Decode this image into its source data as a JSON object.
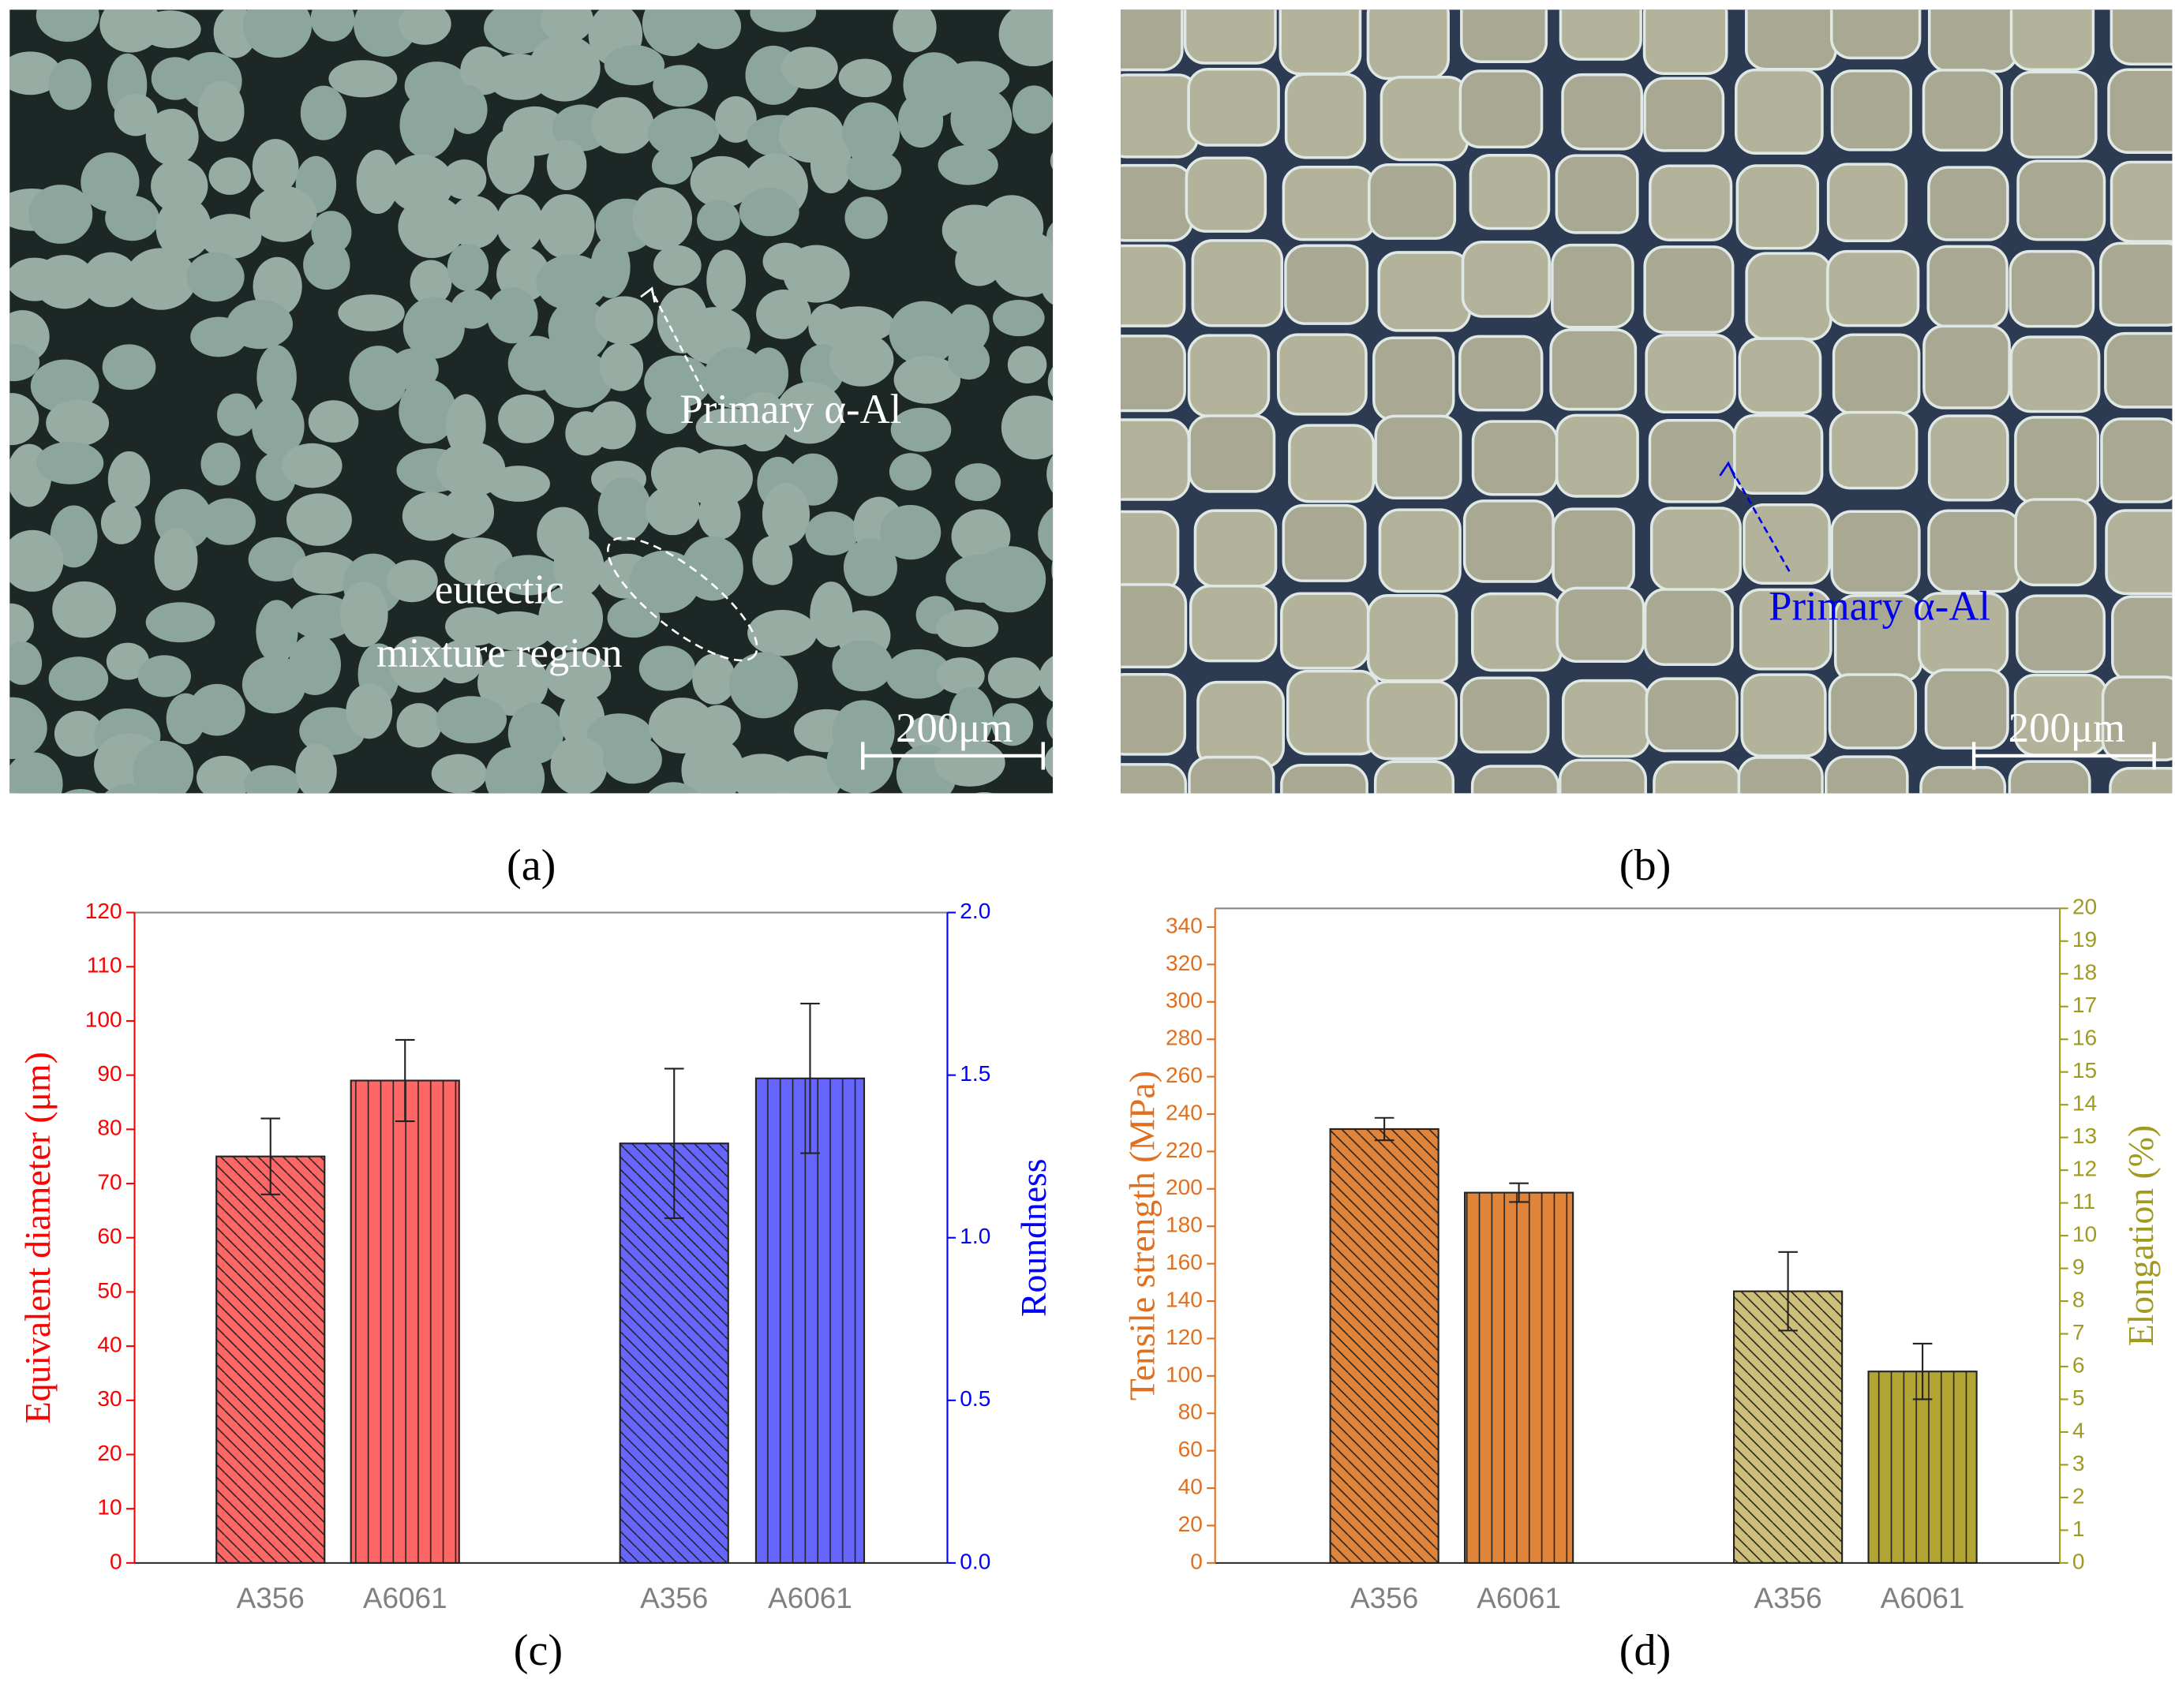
{
  "panels": [
    {
      "label": "(a)",
      "annotation": "Primary α-Al",
      "region_label": [
        "eutectic",
        "mixture region"
      ],
      "scale": "200μm"
    },
    {
      "label": "(b)",
      "annotation": "Primary α-Al",
      "scale": "200μm"
    }
  ],
  "chart_data": [
    {
      "type": "bar",
      "label": "(c)",
      "ylabel": "Equivalent diameter (μm)",
      "y2label": "Roundness",
      "ycolor": "#ff0000",
      "y2color": "#0000ff",
      "categories": [
        "A356",
        "A6061",
        "A356",
        "A6061"
      ],
      "hatch": [
        "diagonal",
        "vertical",
        "diagonal",
        "vertical"
      ],
      "ylim": [
        0,
        120
      ],
      "yticks": [
        0,
        10,
        20,
        30,
        40,
        50,
        60,
        70,
        80,
        90,
        100,
        110,
        120
      ],
      "y2lim": [
        0,
        2
      ],
      "y2ticks": [
        {
          "value": 0,
          "label": "0.0"
        },
        0.5,
        {
          "value": 1,
          "label": "1.0"
        },
        1.5,
        {
          "value": 2,
          "label": "2.0"
        }
      ],
      "series": [
        {
          "axis": "y",
          "colors": [
            "#ff6666",
            "#ff6666",
            null,
            null
          ],
          "values": [
            75,
            89,
            null,
            null
          ],
          "errors": [
            7,
            7.5,
            null,
            null
          ]
        },
        {
          "axis": "y2",
          "colors": [
            null,
            null,
            "#6666ff",
            "#6666ff"
          ],
          "values": [
            null,
            null,
            1.29,
            1.49
          ],
          "errors": [
            null,
            null,
            0.23,
            0.23
          ]
        }
      ]
    },
    {
      "type": "bar",
      "label": "(d)",
      "ylabel": "Tensile strength (MPa)",
      "y2label": "Elongation (%)",
      "ycolor": "#e07020",
      "y2color": "#a09a20",
      "categories": [
        "A356",
        "A6061",
        "A356",
        "A6061"
      ],
      "hatch": [
        "diagonal",
        "vertical",
        "diagonal",
        "vertical"
      ],
      "ylim": [
        0,
        350
      ],
      "yticks": [
        0,
        20,
        40,
        60,
        80,
        100,
        120,
        140,
        160,
        180,
        200,
        220,
        240,
        260,
        280,
        300,
        320,
        340
      ],
      "y2lim": [
        0,
        20
      ],
      "y2ticks": [
        0,
        1,
        2,
        3,
        4,
        5,
        6,
        7,
        8,
        9,
        10,
        11,
        12,
        13,
        14,
        15,
        16,
        17,
        18,
        19,
        20
      ],
      "series": [
        {
          "axis": "y",
          "colors": [
            "#e0843a",
            "#e0843a",
            null,
            null
          ],
          "values": [
            232,
            198,
            null,
            null
          ],
          "errors": [
            6,
            5,
            null,
            null
          ]
        },
        {
          "axis": "y2",
          "colors": [
            null,
            null,
            "#cdbf7a",
            "#b3a534"
          ],
          "values": [
            null,
            null,
            8.3,
            5.85
          ],
          "errors": [
            null,
            null,
            1.2,
            0.85
          ]
        }
      ]
    }
  ]
}
